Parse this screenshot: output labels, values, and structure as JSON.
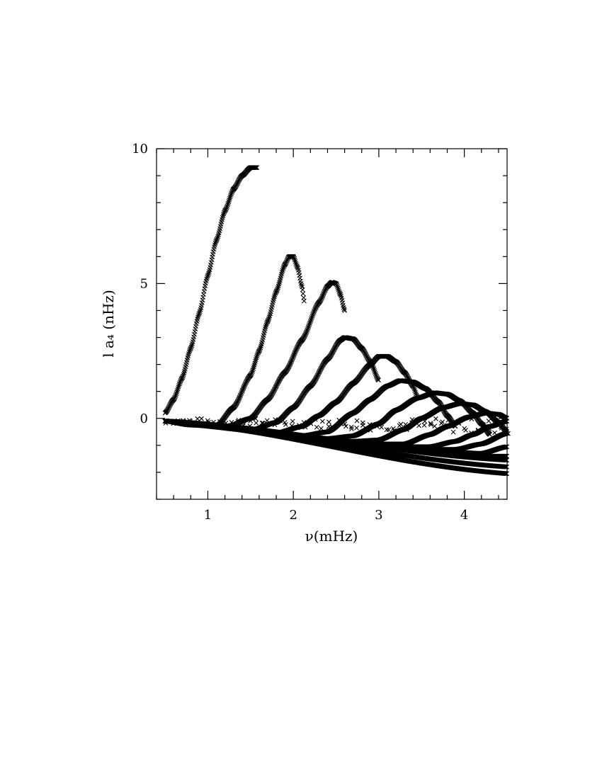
{
  "chart_data": {
    "type": "scatter",
    "marker": "x",
    "xlabel": "ν(mHz)",
    "ylabel": "l a₄ (nHz)",
    "xlim": [
      0.4,
      4.5
    ],
    "ylim": [
      -3,
      10
    ],
    "x_major_ticks": [
      1,
      2,
      3,
      4
    ],
    "x_minor_step": 0.2,
    "y_major_ticks": [
      0,
      5,
      10
    ],
    "y_minor_step": 1,
    "x_tick_labels": [
      "1",
      "2",
      "3",
      "4"
    ],
    "y_tick_labels": [
      "0",
      "5",
      "10"
    ],
    "grid": false,
    "color": "#000000",
    "series": [
      {
        "x": [
          0.5,
          0.6,
          0.7,
          0.8,
          0.9,
          1.0,
          1.1,
          1.2,
          1.3,
          1.4,
          1.5,
          1.58
        ],
        "y": [
          0.2,
          0.7,
          1.5,
          2.6,
          3.9,
          5.3,
          6.6,
          7.7,
          8.5,
          9.0,
          9.3,
          9.3
        ]
      },
      {
        "x": [
          0.5,
          0.8,
          1.1,
          1.3,
          1.5,
          1.6,
          1.7,
          1.8,
          1.9,
          1.95,
          2.0,
          2.05,
          2.1,
          2.13
        ],
        "y": [
          -0.1,
          -0.25,
          -0.3,
          0.4,
          1.6,
          2.5,
          3.6,
          4.7,
          5.7,
          6.0,
          6.0,
          5.6,
          4.9,
          4.3
        ]
      },
      {
        "x": [
          0.5,
          1.2,
          1.5,
          1.7,
          1.9,
          2.1,
          2.3,
          2.4,
          2.45,
          2.5,
          2.55,
          2.6
        ],
        "y": [
          -0.1,
          -0.35,
          0.0,
          0.7,
          1.7,
          2.9,
          4.3,
          4.9,
          5.05,
          5.0,
          4.6,
          4.0
        ]
      },
      {
        "x": [
          0.5,
          1.5,
          1.8,
          2.0,
          2.2,
          2.4,
          2.55,
          2.6,
          2.7,
          2.8,
          2.9,
          3.0
        ],
        "y": [
          -0.1,
          -0.45,
          -0.15,
          0.4,
          1.2,
          2.2,
          2.9,
          3.0,
          2.95,
          2.6,
          2.1,
          1.4
        ]
      },
      {
        "x": [
          0.5,
          1.8,
          2.1,
          2.3,
          2.5,
          2.7,
          2.9,
          3.0,
          3.1,
          3.2,
          3.3,
          3.4,
          3.45
        ],
        "y": [
          -0.1,
          -0.55,
          -0.3,
          0.1,
          0.6,
          1.3,
          2.0,
          2.3,
          2.3,
          2.1,
          1.7,
          1.2,
          0.8
        ]
      },
      {
        "x": [
          0.5,
          2.1,
          2.4,
          2.7,
          2.9,
          3.1,
          3.25,
          3.4,
          3.55,
          3.7,
          3.8,
          3.9
        ],
        "y": [
          -0.1,
          -0.65,
          -0.5,
          0.2,
          0.7,
          1.2,
          1.4,
          1.35,
          1.1,
          0.6,
          0.1,
          -0.3
        ]
      },
      {
        "x": [
          0.5,
          2.4,
          2.7,
          3.0,
          3.2,
          3.45,
          3.65,
          3.8,
          3.95,
          4.1,
          4.2,
          4.3
        ],
        "y": [
          -0.1,
          -0.75,
          -0.65,
          -0.2,
          0.3,
          0.75,
          0.95,
          0.9,
          0.65,
          0.2,
          -0.2,
          -0.6
        ]
      },
      {
        "x": [
          0.5,
          2.7,
          3.0,
          3.3,
          3.5,
          3.75,
          3.95,
          4.1,
          4.25,
          4.4,
          4.5
        ],
        "y": [
          -0.1,
          -0.85,
          -0.8,
          -0.4,
          0.0,
          0.4,
          0.55,
          0.5,
          0.25,
          -0.15,
          -0.5
        ]
      },
      {
        "x": [
          0.5,
          3.0,
          3.3,
          3.6,
          3.8,
          4.05,
          4.25,
          4.4,
          4.5
        ],
        "y": [
          -0.1,
          -0.95,
          -0.95,
          -0.6,
          -0.3,
          0.05,
          0.2,
          0.15,
          0.0
        ]
      },
      {
        "x": [
          0.5,
          3.3,
          3.6,
          3.9,
          4.1,
          4.3,
          4.5
        ],
        "y": [
          -0.1,
          -1.05,
          -1.05,
          -0.85,
          -0.6,
          -0.3,
          -0.1
        ]
      },
      {
        "x": [
          0.5,
          3.6,
          3.9,
          4.2,
          4.5
        ],
        "y": [
          -0.1,
          -1.15,
          -1.15,
          -0.95,
          -0.55
        ]
      },
      {
        "x": [
          0.5,
          3.9,
          4.2,
          4.5
        ],
        "y": [
          -0.1,
          -1.25,
          -1.3,
          -1.05
        ]
      },
      {
        "x": [
          0.5,
          4.2,
          4.5
        ],
        "y": [
          -0.1,
          -1.4,
          -1.4
        ]
      },
      {
        "x": [
          0.5,
          4.5
        ],
        "y": [
          -0.1,
          -1.55
        ]
      },
      {
        "x": [
          0.5,
          4.5
        ],
        "y": [
          -0.1,
          -1.8
        ]
      },
      {
        "x": [
          0.5,
          4.5
        ],
        "y": [
          -0.1,
          -2.05
        ]
      }
    ],
    "scatter_band": {
      "x": [
        0.5,
        4.5
      ],
      "ymin": [
        -0.2,
        -0.6
      ],
      "ymax": [
        0.0,
        0.0
      ]
    }
  }
}
